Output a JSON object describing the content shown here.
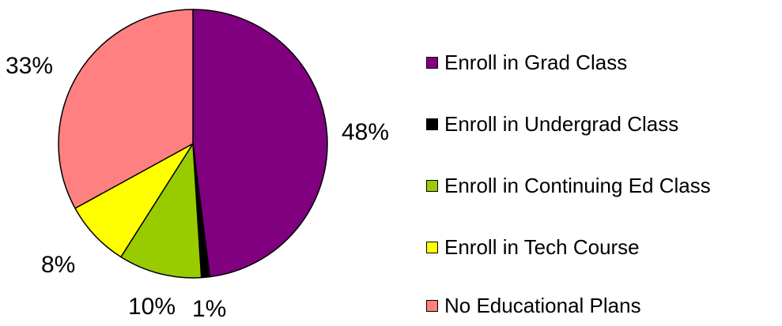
{
  "chart_data": {
    "type": "pie",
    "title": "",
    "start_angle_deg": 0,
    "direction": "clockwise",
    "legend_position": "right",
    "slices": [
      {
        "label": "Enroll in Grad Class",
        "value": 48,
        "display": "48%",
        "color": "#800080"
      },
      {
        "label": "Enroll in Undergrad Class",
        "value": 1,
        "display": "1%",
        "color": "#000000"
      },
      {
        "label": "Enroll in Continuing Ed Class",
        "value": 10,
        "display": "10%",
        "color": "#99cc00"
      },
      {
        "label": "Enroll in Tech Course",
        "value": 8,
        "display": "8%",
        "color": "#ffff00"
      },
      {
        "label": "No Educational Plans",
        "value": 33,
        "display": "33%",
        "color": "#ff8080"
      }
    ]
  }
}
